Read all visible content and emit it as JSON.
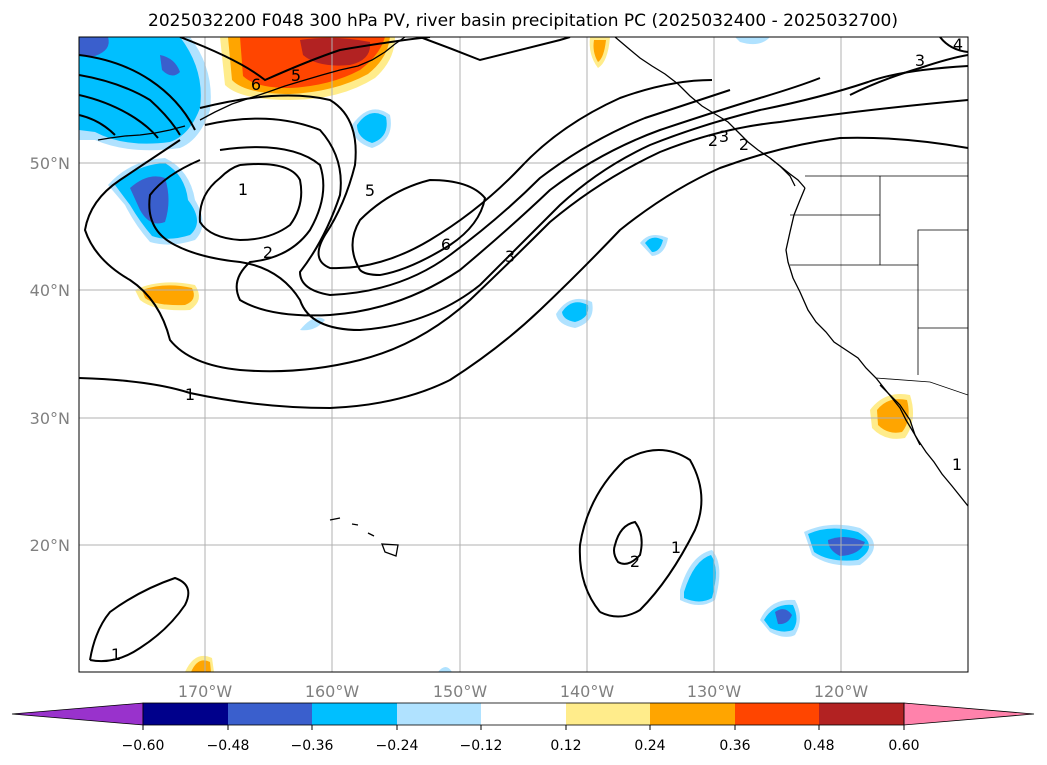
{
  "title": "2025032200 F048 300 hPa PV, river basin precipitation PC (2025032400 - 2025032700)",
  "map": {
    "lon_ticks": [
      "170°W",
      "160°W",
      "150°W",
      "140°W",
      "130°W",
      "120°W"
    ],
    "lat_ticks": [
      "50°N",
      "40°N",
      "30°N",
      "20°N"
    ],
    "lon_range": [
      -180,
      -110
    ],
    "lat_range": [
      10,
      60
    ]
  },
  "colorbar": {
    "ticks": [
      "−0.60",
      "−0.48",
      "−0.36",
      "−0.24",
      "−0.12",
      "0.12",
      "0.24",
      "0.36",
      "0.48",
      "0.60"
    ],
    "colors": [
      "#9932cc",
      "#00008b",
      "#3a5fcd",
      "#00bfff",
      "#b0e2ff",
      "#ffffff",
      "#ffec8b",
      "#ffa500",
      "#ff4500",
      "#b22222",
      "#ff82ab"
    ],
    "extend": "both"
  },
  "pv_contour_labels": [
    "1",
    "2",
    "3",
    "5",
    "6",
    "1",
    "2",
    "3",
    "5",
    "6",
    "1",
    "1",
    "2",
    "1",
    "2",
    "3",
    "4"
  ],
  "precip_anomaly_colors": {
    "strong_negative": "#3a5fcd",
    "negative": "#00bfff",
    "weak_negative": "#b0e2ff",
    "weak_positive": "#ffec8b",
    "positive": "#ffa500",
    "strong_positive": "#ff4500",
    "very_strong_positive": "#b22222"
  }
}
